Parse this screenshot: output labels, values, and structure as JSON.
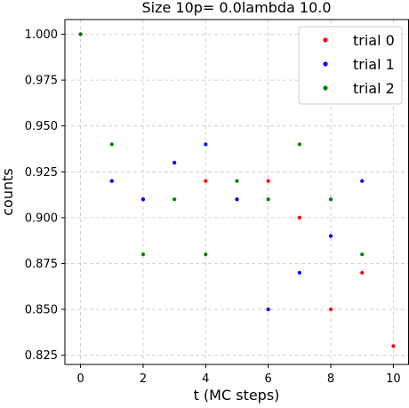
{
  "chart_data": {
    "type": "scatter",
    "title": "Size 10p= 0.0lambda 10.0",
    "xlabel": "t (MC steps)",
    "ylabel": "counts",
    "xlim": [
      -0.5,
      10.5
    ],
    "ylim": [
      0.82,
      1.008
    ],
    "xticks": [
      0,
      2,
      4,
      6,
      8,
      10
    ],
    "xtick_labels": [
      "0",
      "2",
      "4",
      "6",
      "8",
      "10"
    ],
    "yticks": [
      0.825,
      0.85,
      0.875,
      0.9,
      0.925,
      0.95,
      0.975,
      1.0
    ],
    "ytick_labels": [
      "0.825",
      "0.850",
      "0.875",
      "0.900",
      "0.925",
      "0.950",
      "0.975",
      "1.000"
    ],
    "grid": true,
    "legend_position": "top-right",
    "series": [
      {
        "name": "trial 0",
        "color": "#ff0000",
        "x": [
          0,
          1,
          2,
          3,
          4,
          5,
          6,
          7,
          8,
          9,
          10
        ],
        "y": [
          1.0,
          0.92,
          0.91,
          0.93,
          0.92,
          0.91,
          0.92,
          0.9,
          0.85,
          0.87,
          0.83
        ]
      },
      {
        "name": "trial 1",
        "color": "#0000ff",
        "x": [
          0,
          1,
          2,
          3,
          4,
          5,
          6,
          7,
          8,
          9
        ],
        "y": [
          1.0,
          0.92,
          0.91,
          0.93,
          0.94,
          0.91,
          0.85,
          0.87,
          0.89,
          0.92
        ]
      },
      {
        "name": "trial 2",
        "color": "#008000",
        "x": [
          0,
          1,
          2,
          3,
          4,
          5,
          6,
          7,
          8,
          9
        ],
        "y": [
          1.0,
          0.94,
          0.88,
          0.91,
          0.88,
          0.92,
          0.91,
          0.94,
          0.91,
          0.88
        ]
      }
    ]
  }
}
